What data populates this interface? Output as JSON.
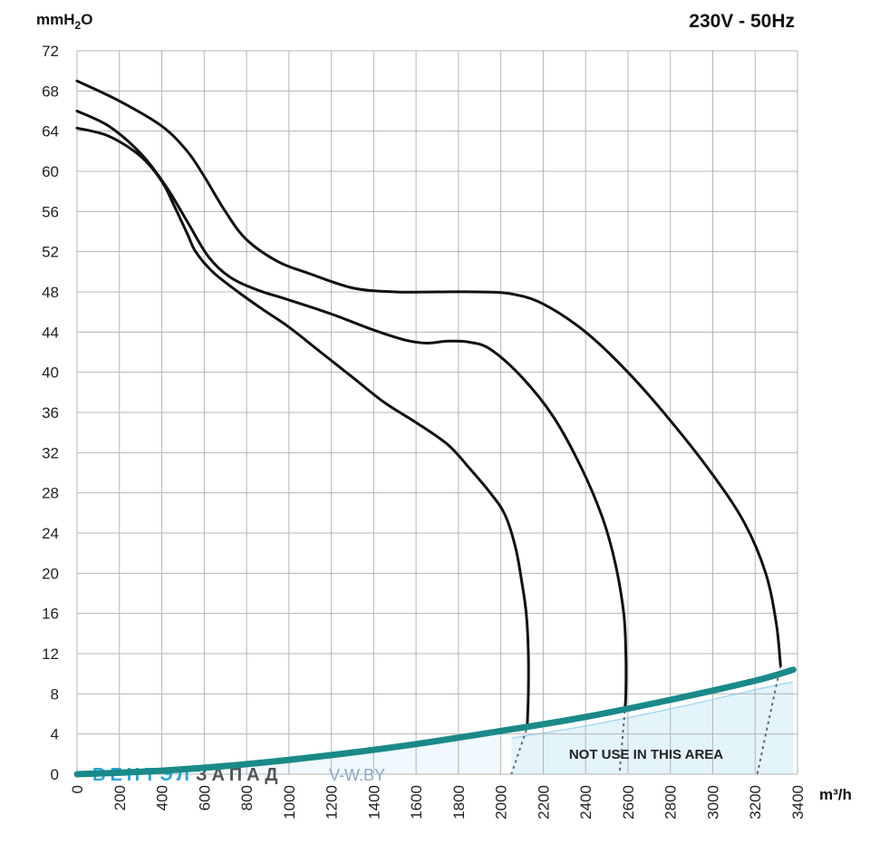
{
  "chart_data": {
    "type": "line",
    "title": "230V - 50Hz",
    "xlabel": "m³/h",
    "ylabel_parts": {
      "base": "mmH",
      "sub": "2",
      "tail": "O"
    },
    "xlim": [
      0,
      3400
    ],
    "ylim": [
      0,
      72
    ],
    "xticks": [
      0,
      200,
      400,
      600,
      800,
      1000,
      1200,
      1400,
      1600,
      1800,
      2000,
      2200,
      2400,
      2600,
      2800,
      3000,
      3200,
      3400
    ],
    "yticks": [
      0,
      4,
      8,
      12,
      16,
      20,
      24,
      28,
      32,
      36,
      40,
      44,
      48,
      52,
      56,
      60,
      64,
      68,
      72
    ],
    "grid": true,
    "series": [
      {
        "x": [
          0,
          150,
          300,
          400,
          460,
          520,
          560,
          640,
          760,
          880,
          1000,
          1150,
          1300,
          1450,
          1600,
          1750,
          1850,
          1950,
          2020,
          2070,
          2100,
          2120,
          2130,
          2130,
          2125
        ],
        "y": [
          64.3,
          63.5,
          61.5,
          59,
          56.5,
          53.8,
          52,
          50,
          48,
          46.2,
          44.5,
          42,
          39.5,
          37,
          35,
          32.8,
          30.5,
          28,
          25.8,
          22.5,
          19,
          16,
          12,
          8,
          5
        ]
      },
      {
        "x": [
          0,
          150,
          300,
          420,
          520,
          620,
          720,
          850,
          1000,
          1200,
          1400,
          1550,
          1650,
          1750,
          1850,
          1950,
          2100,
          2250,
          2380,
          2480,
          2540,
          2580,
          2590,
          2590,
          2585
        ],
        "y": [
          66,
          64.5,
          61.8,
          58.5,
          55,
          51.5,
          49.5,
          48.2,
          47.2,
          45.8,
          44.2,
          43.2,
          42.9,
          43.1,
          43,
          42.3,
          39.5,
          35.5,
          30.5,
          25.5,
          21,
          16,
          12,
          8,
          6.3
        ]
      },
      {
        "x": [
          0,
          200,
          400,
          520,
          600,
          700,
          800,
          950,
          1100,
          1300,
          1500,
          1700,
          1900,
          2050,
          2200,
          2400,
          2600,
          2800,
          3000,
          3150,
          3250,
          3300,
          3320
        ],
        "y": [
          69,
          67,
          64.5,
          62,
          59.5,
          56,
          53.2,
          51,
          49.8,
          48.4,
          48,
          48,
          48,
          47.8,
          46.8,
          44,
          40,
          35.2,
          29.8,
          25,
          20,
          15,
          10.8
        ]
      }
    ],
    "system_curve": {
      "x": [
        0,
        400,
        800,
        1200,
        1600,
        2000,
        2400,
        2800,
        3200,
        3380
      ],
      "y": [
        0,
        0.35,
        1.0,
        1.9,
        3.0,
        4.3,
        5.7,
        7.4,
        9.3,
        10.4
      ]
    },
    "forbidden_area_label": "NOT USE IN THIS AREA",
    "forbidden_area_edge": {
      "x": [
        2050,
        2400,
        2800,
        3200,
        3380
      ],
      "y": [
        3.6,
        4.8,
        6.5,
        8.4,
        9.2
      ]
    },
    "dotted_links": [
      {
        "x": [
          2130,
          2050
        ],
        "y": [
          5,
          0
        ]
      },
      {
        "x": [
          2585,
          2560
        ],
        "y": [
          6.3,
          0
        ]
      },
      {
        "x": [
          3320,
          3210
        ],
        "y": [
          10.8,
          0
        ]
      }
    ],
    "colors": {
      "curves": "#111111",
      "system_curve": "#1a8a89",
      "area": "#e3f4fb",
      "grid": "#b5b5b5"
    }
  },
  "watermark": {
    "part1": "ВЕНТЭЛ",
    "part2": "ЗАПАД",
    "part3": "V-W.BY"
  }
}
